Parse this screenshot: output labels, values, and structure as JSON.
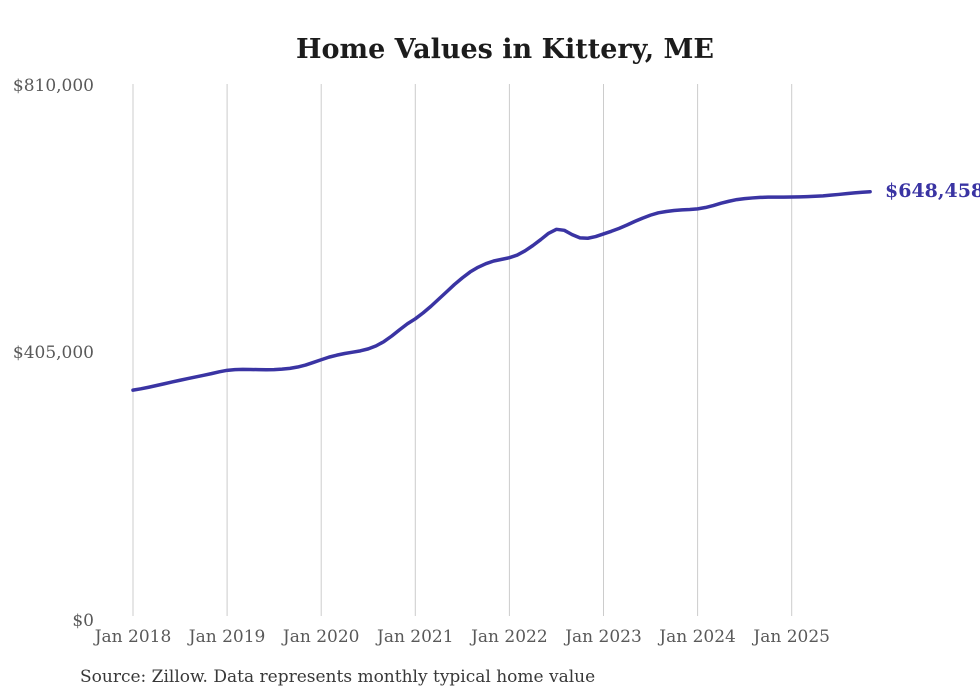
{
  "title": "Home Values in Kittery, ME",
  "source_note": "Source: Zillow. Data represents monthly typical home value",
  "colors": {
    "line": "#3a34a3",
    "end_label": "#3a34a3",
    "grid": "#cccccc",
    "title_text": "#1c1c1c",
    "axis_text": "#595959",
    "source_text": "#383838",
    "background": "#ffffff"
  },
  "chart_data": {
    "type": "line",
    "title": "Home Values in Kittery, ME",
    "xlabel": "",
    "ylabel": "",
    "ylim": [
      0,
      810000
    ],
    "grid": "vertical-only",
    "legend": "none",
    "end_label": "$648,458",
    "end_value": 648458,
    "x_start_month": "Jan 2018",
    "x_end_month": "Nov 2025",
    "x_ticks": [
      "Jan 2018",
      "Jan 2019",
      "Jan 2020",
      "Jan 2021",
      "Jan 2022",
      "Jan 2023",
      "Jan 2024",
      "Jan 2025"
    ],
    "y_ticks": [
      {
        "label": "$810,000",
        "value": 810000
      },
      {
        "label": "$405,000",
        "value": 405000
      },
      {
        "label": "$0",
        "value": 0
      }
    ],
    "series": [
      {
        "name": "Typical home value",
        "interval": "monthly",
        "values": [
          348000,
          350000,
          352400,
          355000,
          357700,
          360400,
          363000,
          365500,
          368000,
          370500,
          373000,
          375800,
          378000,
          379000,
          379400,
          379300,
          379000,
          378800,
          379000,
          379800,
          381000,
          383000,
          386000,
          390000,
          394000,
          398000,
          401000,
          403500,
          405500,
          407500,
          410500,
          415000,
          421500,
          430000,
          439500,
          448500,
          456000,
          465000,
          475000,
          486000,
          497000,
          508000,
          518000,
          527000,
          534000,
          539500,
          543500,
          546000,
          548500,
          552500,
          559000,
          567000,
          576000,
          585500,
          591500,
          590000,
          583500,
          578500,
          578000,
          580500,
          584500,
          588500,
          593000,
          598000,
          603500,
          608500,
          613000,
          616500,
          618500,
          620000,
          621000,
          621500,
          622500,
          624500,
          627500,
          631000,
          634000,
          636500,
          638000,
          639000,
          639800,
          640200,
          640300,
          640300,
          640400,
          640600,
          641000,
          641500,
          642200,
          643200,
          644300,
          645500,
          646700,
          647700,
          648458
        ]
      }
    ]
  }
}
